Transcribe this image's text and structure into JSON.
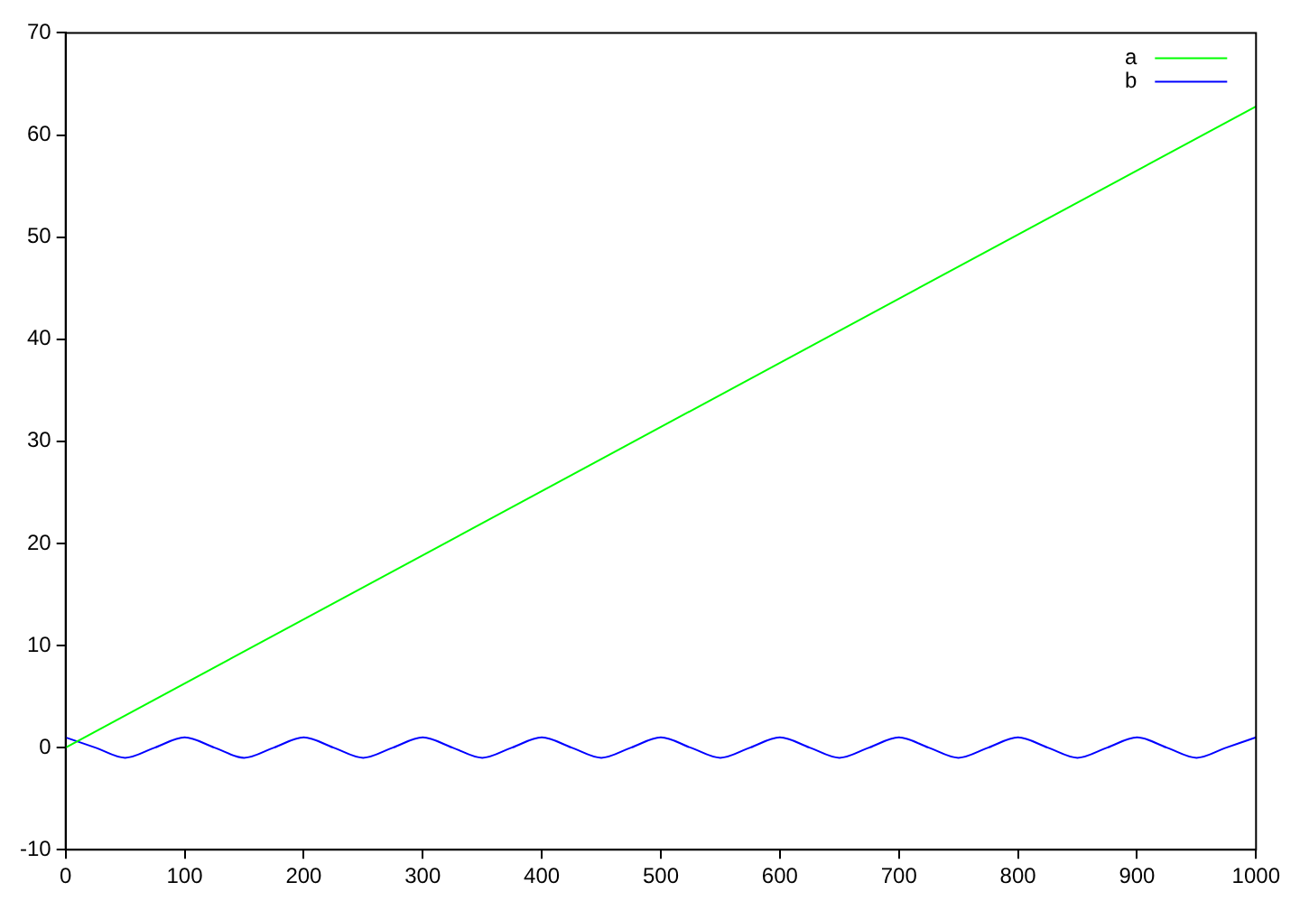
{
  "chart_data": {
    "type": "line",
    "xlim": [
      0,
      1000
    ],
    "ylim": [
      -10,
      70
    ],
    "xticks": [
      0,
      100,
      200,
      300,
      400,
      500,
      600,
      700,
      800,
      900,
      1000
    ],
    "yticks": [
      -10,
      0,
      10,
      20,
      30,
      40,
      50,
      60,
      70
    ],
    "grid": false,
    "legend": "top right",
    "marker": "none",
    "line_style": "solid",
    "series": [
      {
        "name": "a",
        "color": "#00ff00",
        "x": [
          0,
          1000
        ],
        "values": [
          0,
          62.8
        ]
      },
      {
        "name": "b",
        "color": "#0000ff",
        "x": [
          0,
          25,
          50,
          75,
          100,
          125,
          150,
          175,
          200,
          225,
          250,
          275,
          300,
          325,
          350,
          375,
          400,
          425,
          450,
          475,
          500,
          525,
          550,
          575,
          600,
          625,
          650,
          675,
          700,
          725,
          750,
          775,
          800,
          825,
          850,
          875,
          900,
          925,
          950,
          975,
          1000
        ],
        "values": [
          1,
          0,
          -1,
          0,
          1,
          0,
          -1,
          0,
          1,
          0,
          -1,
          0,
          1,
          0,
          -1,
          0,
          1,
          0,
          -1,
          0,
          1,
          0,
          -1,
          0,
          1,
          0,
          -1,
          0,
          1,
          0,
          -1,
          0,
          1,
          0,
          -1,
          0,
          1,
          0,
          -1,
          0,
          1
        ]
      }
    ]
  }
}
